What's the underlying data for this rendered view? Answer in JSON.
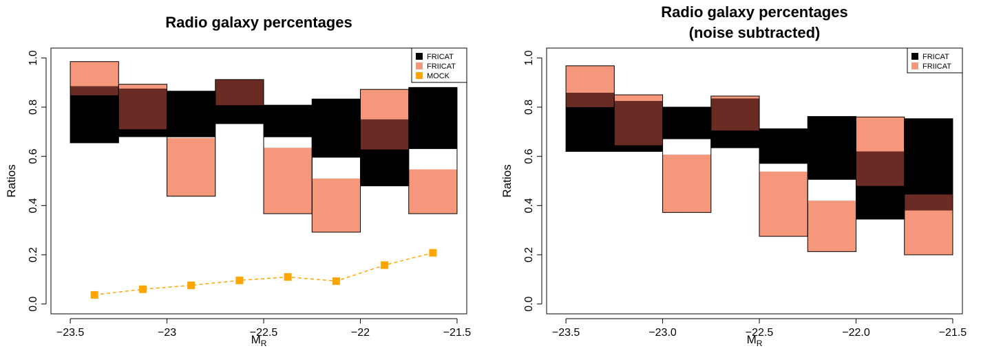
{
  "colors": {
    "fricat": "#000000",
    "friicat": "#f4977b",
    "overlap": "#6b2b25",
    "mock": "#ffa500",
    "axis": "#000000"
  },
  "chart_data": [
    {
      "type": "bar",
      "title_lines": [
        "Radio galaxy percentages"
      ],
      "xlabel": "M",
      "xlabel_sub": "R",
      "ylabel": "Ratios",
      "xlim": [
        -23.6,
        -21.45
      ],
      "ylim": [
        -0.04,
        1.04
      ],
      "xticks": [
        -23.5,
        -23.0,
        -22.5,
        -22.0,
        -21.5
      ],
      "xtick_labels": [
        "−23.5",
        "−23",
        "−22.5",
        "−22",
        "−21.5"
      ],
      "yticks": [
        0.0,
        0.2,
        0.4,
        0.6,
        0.8,
        1.0
      ],
      "ytick_labels": [
        "0.0",
        "0.2",
        "0.4",
        "0.6",
        "0.8",
        "1.0"
      ],
      "legend_position": "top-right",
      "legend": [
        "FRICAT",
        "FRIICAT",
        "MOCK"
      ],
      "bins": [
        [
          -23.5,
          -23.25
        ],
        [
          -23.25,
          -23.0
        ],
        [
          -23.0,
          -22.75
        ],
        [
          -22.75,
          -22.5
        ],
        [
          -22.5,
          -22.25
        ],
        [
          -22.25,
          -22.0
        ],
        [
          -22.0,
          -21.75
        ],
        [
          -21.75,
          -21.5
        ]
      ],
      "series": [
        {
          "name": "FRICAT",
          "low": [
            0.655,
            0.68,
            0.678,
            0.733,
            0.678,
            0.595,
            0.48,
            0.63
          ],
          "high": [
            0.885,
            0.875,
            0.865,
            0.912,
            0.808,
            0.833,
            0.75,
            0.88
          ]
        },
        {
          "name": "FRIICAT",
          "low": [
            0.848,
            0.71,
            0.438,
            0.808,
            0.367,
            0.292,
            0.628,
            0.367
          ],
          "high": [
            0.985,
            0.893,
            0.675,
            0.912,
            0.635,
            0.51,
            0.872,
            0.547
          ]
        },
        {
          "name": "MOCK",
          "x": [
            -23.375,
            -23.125,
            -22.875,
            -22.625,
            -22.375,
            -22.125,
            -21.875,
            -21.625
          ],
          "values": [
            0.037,
            0.06,
            0.076,
            0.096,
            0.11,
            0.093,
            0.158,
            0.208
          ]
        }
      ]
    },
    {
      "type": "bar",
      "title_lines": [
        "Radio galaxy percentages",
        "(noise subtracted)"
      ],
      "xlabel": "M",
      "xlabel_sub": "R",
      "ylabel": "Ratios",
      "xlim": [
        -23.6,
        -21.45
      ],
      "ylim": [
        -0.04,
        1.04
      ],
      "xticks": [
        -23.5,
        -23.0,
        -22.5,
        -22.0,
        -21.5
      ],
      "xtick_labels": [
        "−23.5",
        "−23.0",
        "−22.5",
        "−22.0",
        "−21.5"
      ],
      "yticks": [
        0.0,
        0.2,
        0.4,
        0.6,
        0.8,
        1.0
      ],
      "ytick_labels": [
        "0.0",
        "0.2",
        "0.4",
        "0.6",
        "0.8",
        "1.0"
      ],
      "legend_position": "top-right",
      "legend": [
        "FRICAT",
        "FRIICAT"
      ],
      "bins": [
        [
          -23.5,
          -23.25
        ],
        [
          -23.25,
          -23.0
        ],
        [
          -23.0,
          -22.75
        ],
        [
          -22.75,
          -22.5
        ],
        [
          -22.5,
          -22.25
        ],
        [
          -22.25,
          -22.0
        ],
        [
          -22.0,
          -21.75
        ],
        [
          -21.75,
          -21.5
        ]
      ],
      "series": [
        {
          "name": "FRICAT",
          "low": [
            0.62,
            0.62,
            0.67,
            0.635,
            0.57,
            0.505,
            0.345,
            0.38
          ],
          "high": [
            0.858,
            0.825,
            0.8,
            0.835,
            0.712,
            0.762,
            0.62,
            0.753
          ]
        },
        {
          "name": "FRIICAT",
          "low": [
            0.8,
            0.645,
            0.372,
            0.705,
            0.275,
            0.213,
            0.48,
            0.2
          ],
          "high": [
            0.968,
            0.85,
            0.607,
            0.845,
            0.538,
            0.42,
            0.76,
            0.445
          ]
        }
      ]
    }
  ]
}
